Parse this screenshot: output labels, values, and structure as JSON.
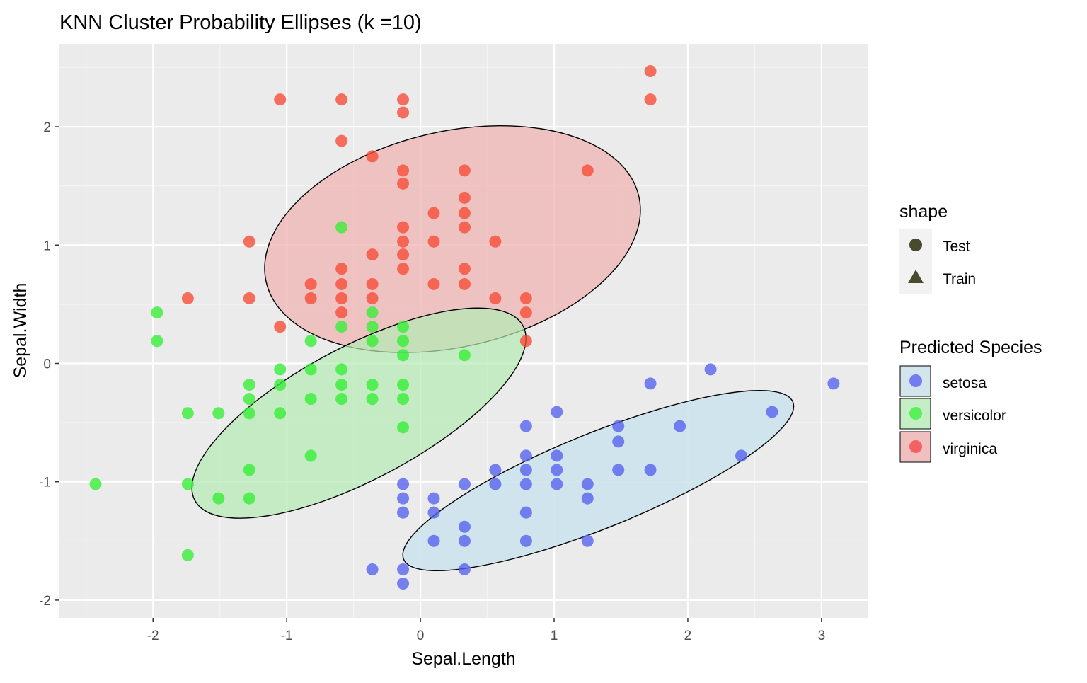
{
  "chart_data": {
    "type": "scatter",
    "title": "KNN Cluster Probability Ellipses (k =10)",
    "xlabel": "Sepal.Length",
    "ylabel": "Sepal.Width",
    "xlim": [
      -2.7,
      3.35
    ],
    "ylim": [
      -2.15,
      2.7
    ],
    "x_ticks": [
      -2,
      -1,
      0,
      1,
      2,
      3
    ],
    "y_ticks": [
      -2,
      -1,
      0,
      1,
      2
    ],
    "x_tick_labels": [
      "-2",
      "-1",
      "0",
      "1",
      "2",
      "3"
    ],
    "y_tick_labels": [
      "-2",
      "-1",
      "0",
      "1",
      "2"
    ],
    "grid": true,
    "legend_position": "right",
    "colors": {
      "panel": "#ebebeb",
      "grid_major": "#ffffff",
      "grid_minor": "#f4f4f4",
      "legend_key_bg": "#f2f2f2"
    },
    "legends": [
      {
        "title": "shape",
        "entries": [
          {
            "label": "Test",
            "marker": "circle",
            "color": "#4a4a2e"
          },
          {
            "label": "Train",
            "marker": "triangle",
            "color": "#4a4a2e"
          }
        ]
      },
      {
        "title": "Predicted Species",
        "entries": [
          {
            "label": "setosa",
            "color": "#5c63f0",
            "fill": "#d3e4ed"
          },
          {
            "label": "versicolor",
            "color": "#3df03d",
            "fill": "#c6eec6"
          },
          {
            "label": "virginica",
            "color": "#f34a4a",
            "fill": "#f0c0c0"
          }
        ]
      }
    ],
    "ellipses": [
      {
        "series": "virginica",
        "cx": 0.24,
        "cy": 1.05,
        "rx": 1.43,
        "ry": 0.91,
        "angle_deg": 13,
        "fill": "#f0b4b4",
        "opacity": 0.75
      },
      {
        "series": "versicolor",
        "cx": -0.46,
        "cy": -0.42,
        "rx": 1.39,
        "ry": 0.56,
        "angle_deg": 28,
        "fill": "#b4ebb4",
        "opacity": 0.7
      },
      {
        "series": "setosa",
        "cx": 1.33,
        "cy": -0.99,
        "rx": 1.57,
        "ry": 0.4,
        "angle_deg": 22,
        "fill": "#cde3ed",
        "opacity": 0.9
      }
    ],
    "series": [
      {
        "name": "virginica",
        "color": "#f74a35",
        "points": [
          [
            1.72,
            2.47
          ],
          [
            1.72,
            2.23
          ],
          [
            -1.05,
            2.23
          ],
          [
            -0.59,
            2.23
          ],
          [
            -0.13,
            2.23
          ],
          [
            -0.13,
            2.12
          ],
          [
            -0.59,
            1.88
          ],
          [
            -0.36,
            1.75
          ],
          [
            -0.13,
            1.63
          ],
          [
            0.33,
            1.63
          ],
          [
            1.25,
            1.63
          ],
          [
            -0.13,
            1.52
          ],
          [
            0.33,
            1.4
          ],
          [
            0.1,
            1.27
          ],
          [
            0.33,
            1.27
          ],
          [
            -0.13,
            1.15
          ],
          [
            0.33,
            1.15
          ],
          [
            -1.28,
            1.03
          ],
          [
            -0.13,
            1.03
          ],
          [
            0.1,
            1.03
          ],
          [
            0.56,
            1.03
          ],
          [
            -0.36,
            0.92
          ],
          [
            -0.13,
            0.92
          ],
          [
            -0.59,
            0.8
          ],
          [
            -0.13,
            0.8
          ],
          [
            0.33,
            0.8
          ],
          [
            -0.82,
            0.67
          ],
          [
            -0.59,
            0.67
          ],
          [
            -0.36,
            0.67
          ],
          [
            0.1,
            0.67
          ],
          [
            0.33,
            0.67
          ],
          [
            -1.74,
            0.55
          ],
          [
            -1.28,
            0.55
          ],
          [
            -0.82,
            0.55
          ],
          [
            -0.59,
            0.55
          ],
          [
            -0.36,
            0.55
          ],
          [
            0.56,
            0.55
          ],
          [
            0.79,
            0.55
          ],
          [
            -0.59,
            0.43
          ],
          [
            0.79,
            0.43
          ],
          [
            -1.05,
            0.31
          ],
          [
            0.79,
            0.19
          ]
        ]
      },
      {
        "name": "versicolor",
        "color": "#33ee33",
        "points": [
          [
            -0.59,
            1.15
          ],
          [
            -1.97,
            0.43
          ],
          [
            -0.36,
            0.43
          ],
          [
            -1.97,
            0.19
          ],
          [
            -0.59,
            0.31
          ],
          [
            -0.36,
            0.31
          ],
          [
            -0.13,
            0.31
          ],
          [
            -0.82,
            0.19
          ],
          [
            -0.36,
            0.19
          ],
          [
            -0.13,
            0.19
          ],
          [
            -0.13,
            0.07
          ],
          [
            0.33,
            0.07
          ],
          [
            -1.05,
            -0.05
          ],
          [
            -0.82,
            -0.05
          ],
          [
            -0.59,
            -0.05
          ],
          [
            -1.28,
            -0.18
          ],
          [
            -1.05,
            -0.18
          ],
          [
            -0.59,
            -0.18
          ],
          [
            -0.36,
            -0.18
          ],
          [
            -0.13,
            -0.18
          ],
          [
            -1.28,
            -0.3
          ],
          [
            -0.82,
            -0.3
          ],
          [
            -0.59,
            -0.3
          ],
          [
            -0.36,
            -0.3
          ],
          [
            -0.13,
            -0.3
          ],
          [
            -1.74,
            -0.42
          ],
          [
            -1.51,
            -0.42
          ],
          [
            -1.28,
            -0.42
          ],
          [
            -1.05,
            -0.42
          ],
          [
            -0.13,
            -0.54
          ],
          [
            -0.82,
            -0.78
          ],
          [
            -1.28,
            -0.9
          ],
          [
            -2.43,
            -1.02
          ],
          [
            -1.74,
            -1.02
          ],
          [
            -1.51,
            -1.14
          ],
          [
            -1.28,
            -1.14
          ],
          [
            -1.74,
            -1.62
          ]
        ]
      },
      {
        "name": "setosa",
        "color": "#5560ee",
        "points": [
          [
            2.17,
            -0.05
          ],
          [
            3.09,
            -0.17
          ],
          [
            1.72,
            -0.17
          ],
          [
            2.63,
            -0.41
          ],
          [
            1.02,
            -0.41
          ],
          [
            0.79,
            -0.53
          ],
          [
            1.48,
            -0.53
          ],
          [
            1.94,
            -0.53
          ],
          [
            1.48,
            -0.66
          ],
          [
            0.79,
            -0.78
          ],
          [
            1.02,
            -0.78
          ],
          [
            2.4,
            -0.78
          ],
          [
            0.56,
            -0.9
          ],
          [
            0.79,
            -0.9
          ],
          [
            1.02,
            -0.9
          ],
          [
            1.48,
            -0.9
          ],
          [
            1.72,
            -0.9
          ],
          [
            -0.13,
            -1.02
          ],
          [
            0.33,
            -1.02
          ],
          [
            0.56,
            -1.02
          ],
          [
            0.79,
            -1.02
          ],
          [
            1.02,
            -1.02
          ],
          [
            1.25,
            -1.02
          ],
          [
            -0.13,
            -1.14
          ],
          [
            0.1,
            -1.14
          ],
          [
            1.25,
            -1.14
          ],
          [
            -0.13,
            -1.26
          ],
          [
            0.1,
            -1.26
          ],
          [
            0.79,
            -1.26
          ],
          [
            0.33,
            -1.38
          ],
          [
            0.1,
            -1.5
          ],
          [
            0.33,
            -1.5
          ],
          [
            0.79,
            -1.5
          ],
          [
            1.25,
            -1.5
          ],
          [
            -0.36,
            -1.74
          ],
          [
            -0.13,
            -1.74
          ],
          [
            0.33,
            -1.74
          ],
          [
            -0.13,
            -1.86
          ]
        ]
      }
    ]
  }
}
